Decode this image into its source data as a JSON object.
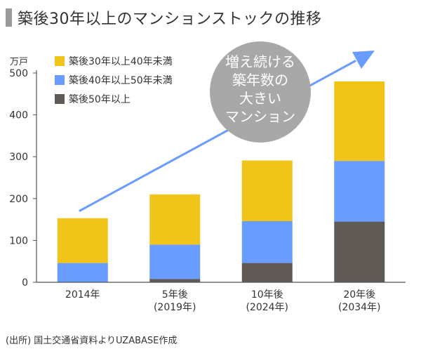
{
  "title": "築後30年以上のマンションストックの推移",
  "source": "(出所) 国土交通省資料よりUZABASE作成",
  "callout": [
    "増え続ける",
    "築年数の",
    "大きい",
    "マンション"
  ],
  "chart_data": {
    "type": "bar",
    "stacked": true,
    "ylabel": "万戸",
    "ylim": [
      0,
      500
    ],
    "yticks": [
      0,
      100,
      200,
      300,
      400,
      500
    ],
    "categories": [
      [
        "2014年"
      ],
      [
        "5年後",
        "(2019年)"
      ],
      [
        "10年後",
        "(2024年)"
      ],
      [
        "20年後",
        "(2034年)"
      ]
    ],
    "series": [
      {
        "name": "築後50年以上",
        "color": "#605a56",
        "values": [
          0,
          8,
          46,
          145
        ]
      },
      {
        "name": "築後40年以上50年未満",
        "color": "#6a9bff",
        "values": [
          46,
          82,
          100,
          145
        ]
      },
      {
        "name": "築後30年以上40年未満",
        "color": "#f0c419",
        "values": [
          107,
          120,
          145,
          190
        ]
      }
    ],
    "legend_order": [
      "築後30年以上40年未満",
      "築後40年以上50年未満",
      "築後50年以上"
    ],
    "grid": false,
    "arrow_color": "#6a9bff",
    "callout_color": "#a8a8a8"
  }
}
